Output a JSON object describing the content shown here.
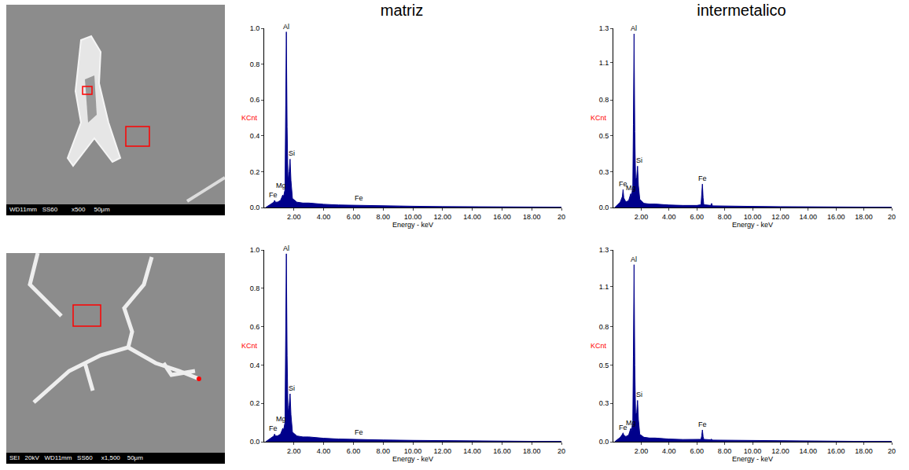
{
  "images": [
    {
      "caption": "WD11mm   SS60        x500     50μm"
    },
    {
      "caption": "SEI   20kV   WD11mm   SS60     x1,500    50μm"
    }
  ],
  "chart_data": [
    {
      "type": "line",
      "title": "matriz",
      "x_label": "Energy - keV",
      "y_label": "KCnt",
      "color": "#00008b",
      "xlim": [
        0,
        20
      ],
      "ylim": [
        0,
        1.0
      ],
      "xticks": [
        {
          "value": 2,
          "label": "2.00"
        },
        {
          "value": 4,
          "label": "4.00"
        },
        {
          "value": 6,
          "label": "6.00"
        },
        {
          "value": 8,
          "label": "8.00"
        },
        {
          "value": 10,
          "label": "10.00"
        },
        {
          "value": 12,
          "label": "12.00"
        },
        {
          "value": 14,
          "label": "14.00"
        },
        {
          "value": 16,
          "label": "16.00"
        },
        {
          "value": 18,
          "label": "18.00"
        },
        20
      ],
      "yticks": [
        {
          "value": 0,
          "label": "0.0"
        },
        {
          "value": 0.2,
          "label": "0.2"
        },
        {
          "value": 0.4,
          "label": "0.4"
        },
        {
          "value": 0.6,
          "label": "0.6"
        },
        {
          "value": 0.8,
          "label": "0.8"
        },
        {
          "value": 1.0,
          "label": "1.0"
        }
      ],
      "x": [
        0.1,
        0.3,
        0.5,
        0.65,
        0.7,
        0.75,
        0.9,
        1.1,
        1.2,
        1.25,
        1.3,
        1.4,
        1.44,
        1.49,
        1.54,
        1.6,
        1.68,
        1.74,
        1.8,
        1.9,
        2.2,
        2.6,
        3.0,
        3.5,
        4.0,
        5.0,
        6.0,
        6.35,
        6.4,
        6.45,
        7.0,
        8.0,
        10.0,
        12.0,
        14.0,
        16.0,
        18.0,
        20.0
      ],
      "values": [
        0,
        0.01,
        0.02,
        0.03,
        0.04,
        0.03,
        0.03,
        0.04,
        0.06,
        0.07,
        0.06,
        0.1,
        0.5,
        0.98,
        0.45,
        0.15,
        0.2,
        0.27,
        0.15,
        0.05,
        0.03,
        0.025,
        0.025,
        0.02,
        0.018,
        0.014,
        0.012,
        0.012,
        0.014,
        0.011,
        0.01,
        0.009,
        0.007,
        0.005,
        0.004,
        0.003,
        0.002,
        0.002
      ],
      "annotations": [
        {
          "text": "Al",
          "x": 1.49,
          "y": 0.98
        },
        {
          "text": "Si",
          "x": 1.85,
          "y": 0.27
        },
        {
          "text": "Mg",
          "x": 1.15,
          "y": 0.09
        },
        {
          "text": "Fe",
          "x": 0.6,
          "y": 0.04
        },
        {
          "text": "Fe",
          "x": 6.4,
          "y": 0.02
        }
      ]
    },
    {
      "type": "line",
      "title": "intermetalico",
      "x_label": "Energy - keV",
      "y_label": "KCnt",
      "color": "#00008b",
      "xlim": [
        0,
        20
      ],
      "ylim": [
        0,
        1.3
      ],
      "xticks": [
        {
          "value": 2,
          "label": "2.00"
        },
        {
          "value": 4,
          "label": "4.00"
        },
        {
          "value": 6,
          "label": "6.00"
        },
        {
          "value": 8,
          "label": "8.00"
        },
        {
          "value": 10,
          "label": "10.00"
        },
        {
          "value": 12,
          "label": "12.00"
        },
        {
          "value": 14,
          "label": "14.00"
        },
        {
          "value": 16,
          "label": "16.00"
        },
        {
          "value": 18,
          "label": "18.00"
        },
        20
      ],
      "yticks": [
        {
          "value": 0,
          "label": "0.0"
        },
        {
          "value": 0.26,
          "label": "0.3"
        },
        {
          "value": 0.52,
          "label": "0.5"
        },
        {
          "value": 0.78,
          "label": "0.8"
        },
        {
          "value": 1.05,
          "label": "1.1"
        },
        {
          "value": 1.3,
          "label": "1.3"
        }
      ],
      "x": [
        0.1,
        0.3,
        0.5,
        0.65,
        0.7,
        0.75,
        0.9,
        1.1,
        1.2,
        1.25,
        1.3,
        1.4,
        1.44,
        1.49,
        1.54,
        1.6,
        1.68,
        1.74,
        1.8,
        1.9,
        2.2,
        2.6,
        3.0,
        3.5,
        4.0,
        5.0,
        6.0,
        6.3,
        6.35,
        6.4,
        6.45,
        6.5,
        7.0,
        7.06,
        7.12,
        8.0,
        10.0,
        12.0,
        14.0,
        16.0,
        18.0,
        20.0
      ],
      "values": [
        0,
        0.02,
        0.04,
        0.08,
        0.13,
        0.07,
        0.04,
        0.05,
        0.08,
        0.1,
        0.08,
        0.15,
        0.6,
        1.26,
        0.55,
        0.2,
        0.22,
        0.3,
        0.16,
        0.06,
        0.03,
        0.025,
        0.025,
        0.02,
        0.018,
        0.015,
        0.015,
        0.02,
        0.08,
        0.17,
        0.07,
        0.02,
        0.015,
        0.03,
        0.012,
        0.01,
        0.008,
        0.006,
        0.004,
        0.003,
        0.002,
        0.002
      ],
      "annotations": [
        {
          "text": "Al",
          "x": 1.49,
          "y": 1.26
        },
        {
          "text": "Si",
          "x": 1.85,
          "y": 0.3
        },
        {
          "text": "Mg",
          "x": 1.25,
          "y": 0.1
        },
        {
          "text": "Fe",
          "x": 0.7,
          "y": 0.13
        },
        {
          "text": "Fe",
          "x": 6.4,
          "y": 0.17
        }
      ]
    },
    {
      "type": "line",
      "x_label": "Energy - keV",
      "y_label": "KCnt",
      "color": "#00008b",
      "xlim": [
        0,
        20
      ],
      "ylim": [
        0,
        1.0
      ],
      "xticks": [
        {
          "value": 2,
          "label": "2.00"
        },
        {
          "value": 4,
          "label": "4.00"
        },
        {
          "value": 6,
          "label": "6.00"
        },
        {
          "value": 8,
          "label": "8.00"
        },
        {
          "value": 10,
          "label": "10.00"
        },
        {
          "value": 12,
          "label": "12.00"
        },
        {
          "value": 14,
          "label": "14.00"
        },
        {
          "value": 16,
          "label": "16.00"
        },
        {
          "value": 18,
          "label": "18.00"
        },
        20
      ],
      "yticks": [
        {
          "value": 0,
          "label": "0.0"
        },
        {
          "value": 0.2,
          "label": "0.2"
        },
        {
          "value": 0.4,
          "label": "0.4"
        },
        {
          "value": 0.6,
          "label": "0.6"
        },
        {
          "value": 0.8,
          "label": "0.8"
        },
        {
          "value": 1.0,
          "label": "1.0"
        }
      ],
      "x": [
        0.1,
        0.3,
        0.5,
        0.65,
        0.7,
        0.75,
        0.9,
        1.1,
        1.2,
        1.25,
        1.3,
        1.4,
        1.44,
        1.49,
        1.54,
        1.6,
        1.68,
        1.74,
        1.8,
        1.9,
        2.2,
        2.6,
        3.0,
        3.5,
        4.0,
        5.0,
        6.0,
        6.35,
        6.4,
        6.45,
        7.0,
        8.0,
        10.0,
        12.0,
        14.0,
        16.0,
        18.0,
        20.0
      ],
      "values": [
        0,
        0.01,
        0.02,
        0.03,
        0.04,
        0.03,
        0.03,
        0.04,
        0.06,
        0.07,
        0.06,
        0.1,
        0.5,
        0.98,
        0.45,
        0.15,
        0.19,
        0.25,
        0.14,
        0.05,
        0.03,
        0.025,
        0.025,
        0.02,
        0.018,
        0.014,
        0.012,
        0.012,
        0.014,
        0.011,
        0.01,
        0.009,
        0.007,
        0.005,
        0.004,
        0.003,
        0.002,
        0.002
      ],
      "annotations": [
        {
          "text": "Al",
          "x": 1.49,
          "y": 0.98
        },
        {
          "text": "Si",
          "x": 1.85,
          "y": 0.25
        },
        {
          "text": "Mg",
          "x": 1.15,
          "y": 0.09
        },
        {
          "text": "Fe",
          "x": 0.6,
          "y": 0.04
        },
        {
          "text": "Fe",
          "x": 6.4,
          "y": 0.02
        }
      ]
    },
    {
      "type": "line",
      "x_label": "Energy - keV",
      "y_label": "KCnt",
      "color": "#00008b",
      "xlim": [
        0,
        20
      ],
      "ylim": [
        0,
        1.3
      ],
      "xticks": [
        {
          "value": 2,
          "label": "2.00"
        },
        {
          "value": 4,
          "label": "4.00"
        },
        {
          "value": 6,
          "label": "6.00"
        },
        {
          "value": 8,
          "label": "8.00"
        },
        {
          "value": 10,
          "label": "10.00"
        },
        {
          "value": 12,
          "label": "12.00"
        },
        {
          "value": 14,
          "label": "14.00"
        },
        {
          "value": 16,
          "label": "16.00"
        },
        {
          "value": 18,
          "label": "18.00"
        },
        20
      ],
      "yticks": [
        {
          "value": 0,
          "label": "0.0"
        },
        {
          "value": 0.26,
          "label": "0.3"
        },
        {
          "value": 0.52,
          "label": "0.5"
        },
        {
          "value": 0.78,
          "label": "0.8"
        },
        {
          "value": 1.05,
          "label": "1.1"
        },
        {
          "value": 1.3,
          "label": "1.3"
        }
      ],
      "x": [
        0.1,
        0.3,
        0.5,
        0.65,
        0.7,
        0.75,
        0.9,
        1.1,
        1.2,
        1.25,
        1.3,
        1.4,
        1.44,
        1.49,
        1.54,
        1.6,
        1.68,
        1.74,
        1.8,
        1.9,
        2.2,
        2.6,
        3.0,
        3.5,
        4.0,
        5.0,
        6.0,
        6.3,
        6.35,
        6.4,
        6.45,
        6.5,
        7.0,
        7.06,
        7.12,
        8.0,
        10.0,
        12.0,
        14.0,
        16.0,
        18.0,
        20.0
      ],
      "values": [
        0,
        0.015,
        0.03,
        0.05,
        0.06,
        0.045,
        0.035,
        0.045,
        0.07,
        0.09,
        0.07,
        0.14,
        0.58,
        1.2,
        0.52,
        0.18,
        0.2,
        0.28,
        0.15,
        0.05,
        0.03,
        0.025,
        0.025,
        0.02,
        0.018,
        0.015,
        0.014,
        0.016,
        0.04,
        0.08,
        0.035,
        0.016,
        0.013,
        0.018,
        0.011,
        0.01,
        0.008,
        0.006,
        0.004,
        0.003,
        0.002,
        0.002
      ],
      "annotations": [
        {
          "text": "Al",
          "x": 1.49,
          "y": 1.2
        },
        {
          "text": "Si",
          "x": 1.85,
          "y": 0.28
        },
        {
          "text": "Mg",
          "x": 1.25,
          "y": 0.09
        },
        {
          "text": "Fe",
          "x": 0.7,
          "y": 0.06
        },
        {
          "text": "Fe",
          "x": 6.4,
          "y": 0.08
        }
      ]
    }
  ]
}
